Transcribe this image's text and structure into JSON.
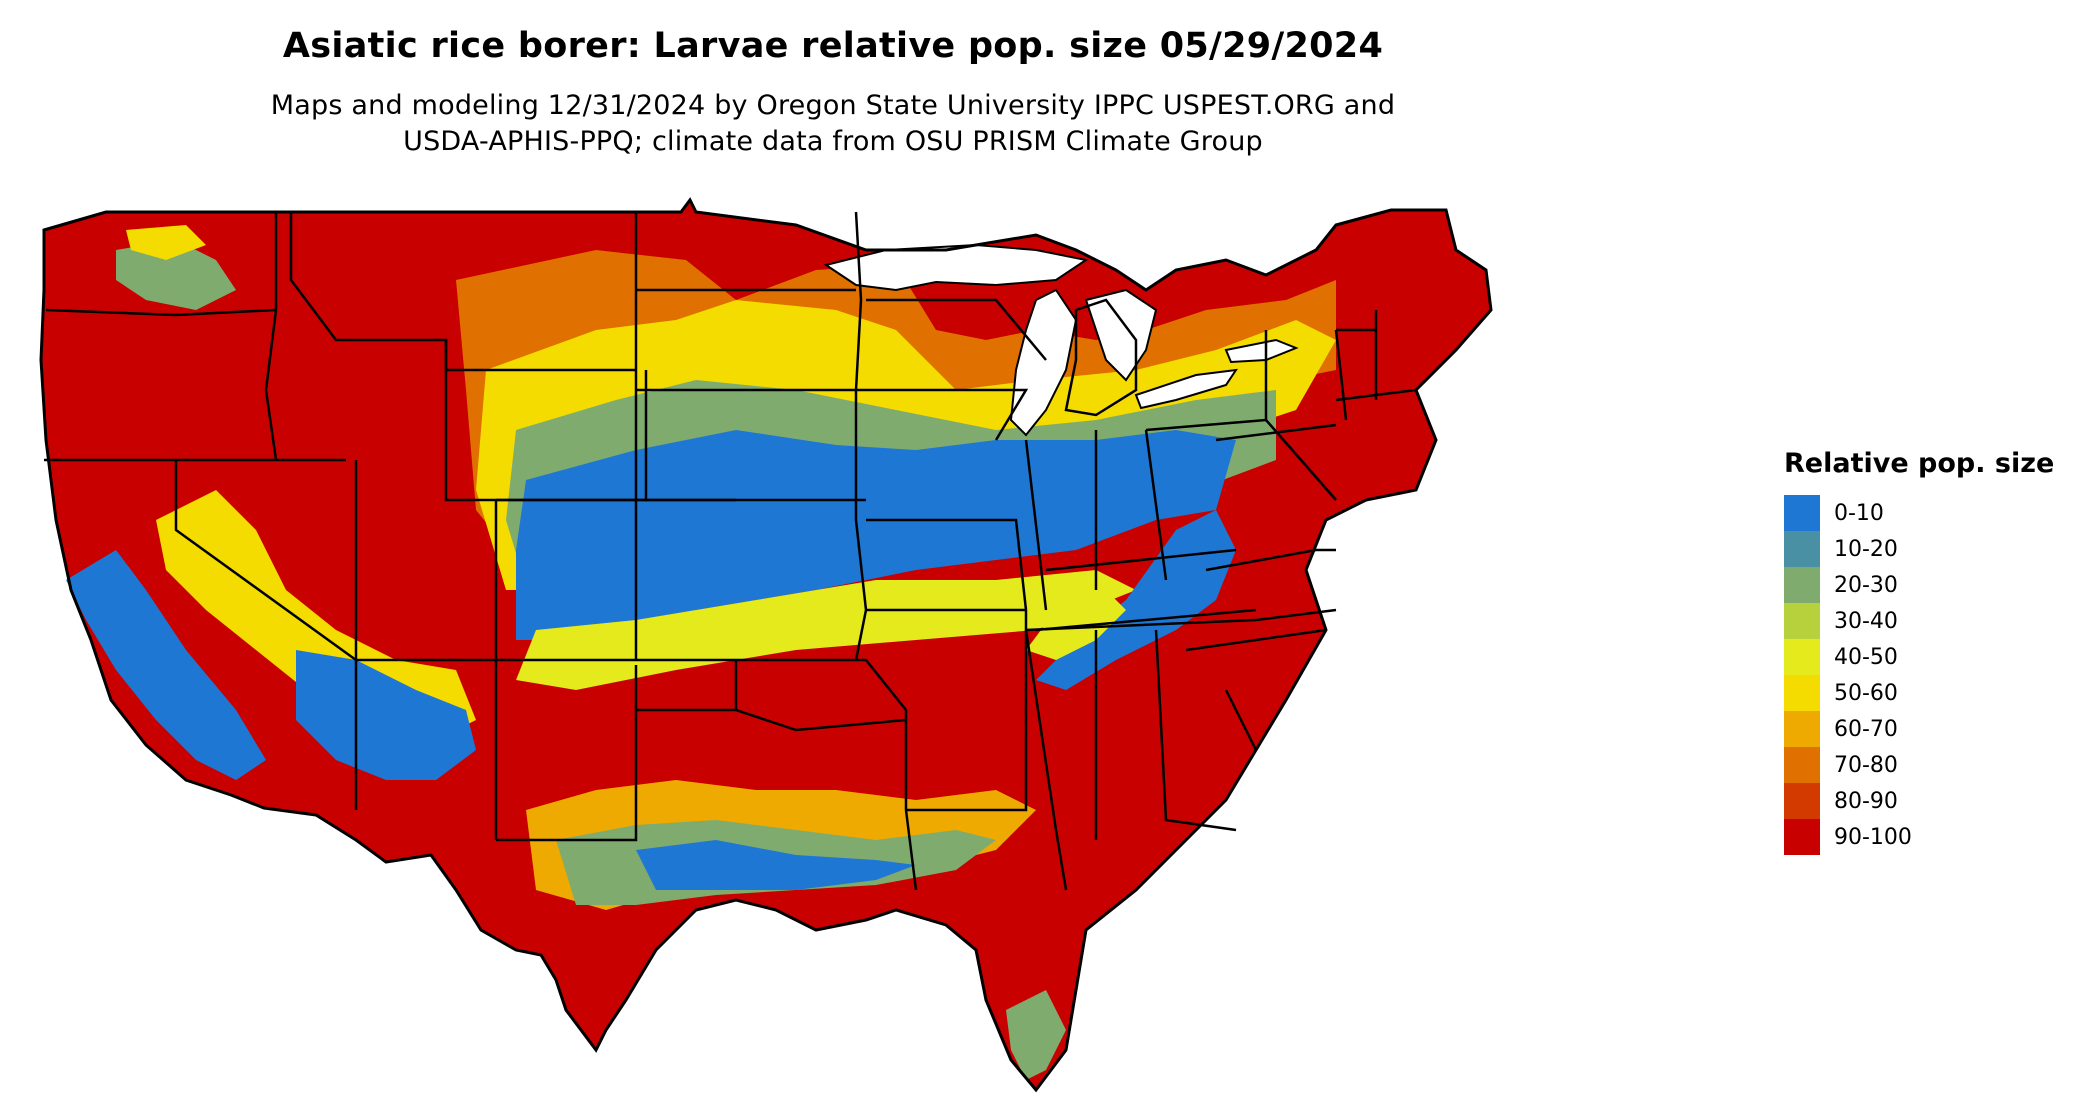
{
  "title": "Asiatic rice borer: Larvae relative pop. size 05/29/2024",
  "subtitle_line1": "Maps and modeling 12/31/2024 by Oregon State University IPPC USPEST.ORG and",
  "subtitle_line2": "USDA-APHIS-PPQ; climate data from OSU PRISM Climate Group",
  "legend": {
    "title": "Relative pop. size",
    "items": [
      {
        "label": "0-10",
        "color": "#1f77d4"
      },
      {
        "label": "10-20",
        "color": "#4a90a4"
      },
      {
        "label": "20-30",
        "color": "#7fac6e"
      },
      {
        "label": "30-40",
        "color": "#b6d13c"
      },
      {
        "label": "40-50",
        "color": "#e4ea1c"
      },
      {
        "label": "50-60",
        "color": "#f5dc00"
      },
      {
        "label": "60-70",
        "color": "#eeaa00"
      },
      {
        "label": "70-80",
        "color": "#e07000"
      },
      {
        "label": "80-90",
        "color": "#d23a00"
      },
      {
        "label": "90-100",
        "color": "#c80000"
      }
    ]
  }
}
